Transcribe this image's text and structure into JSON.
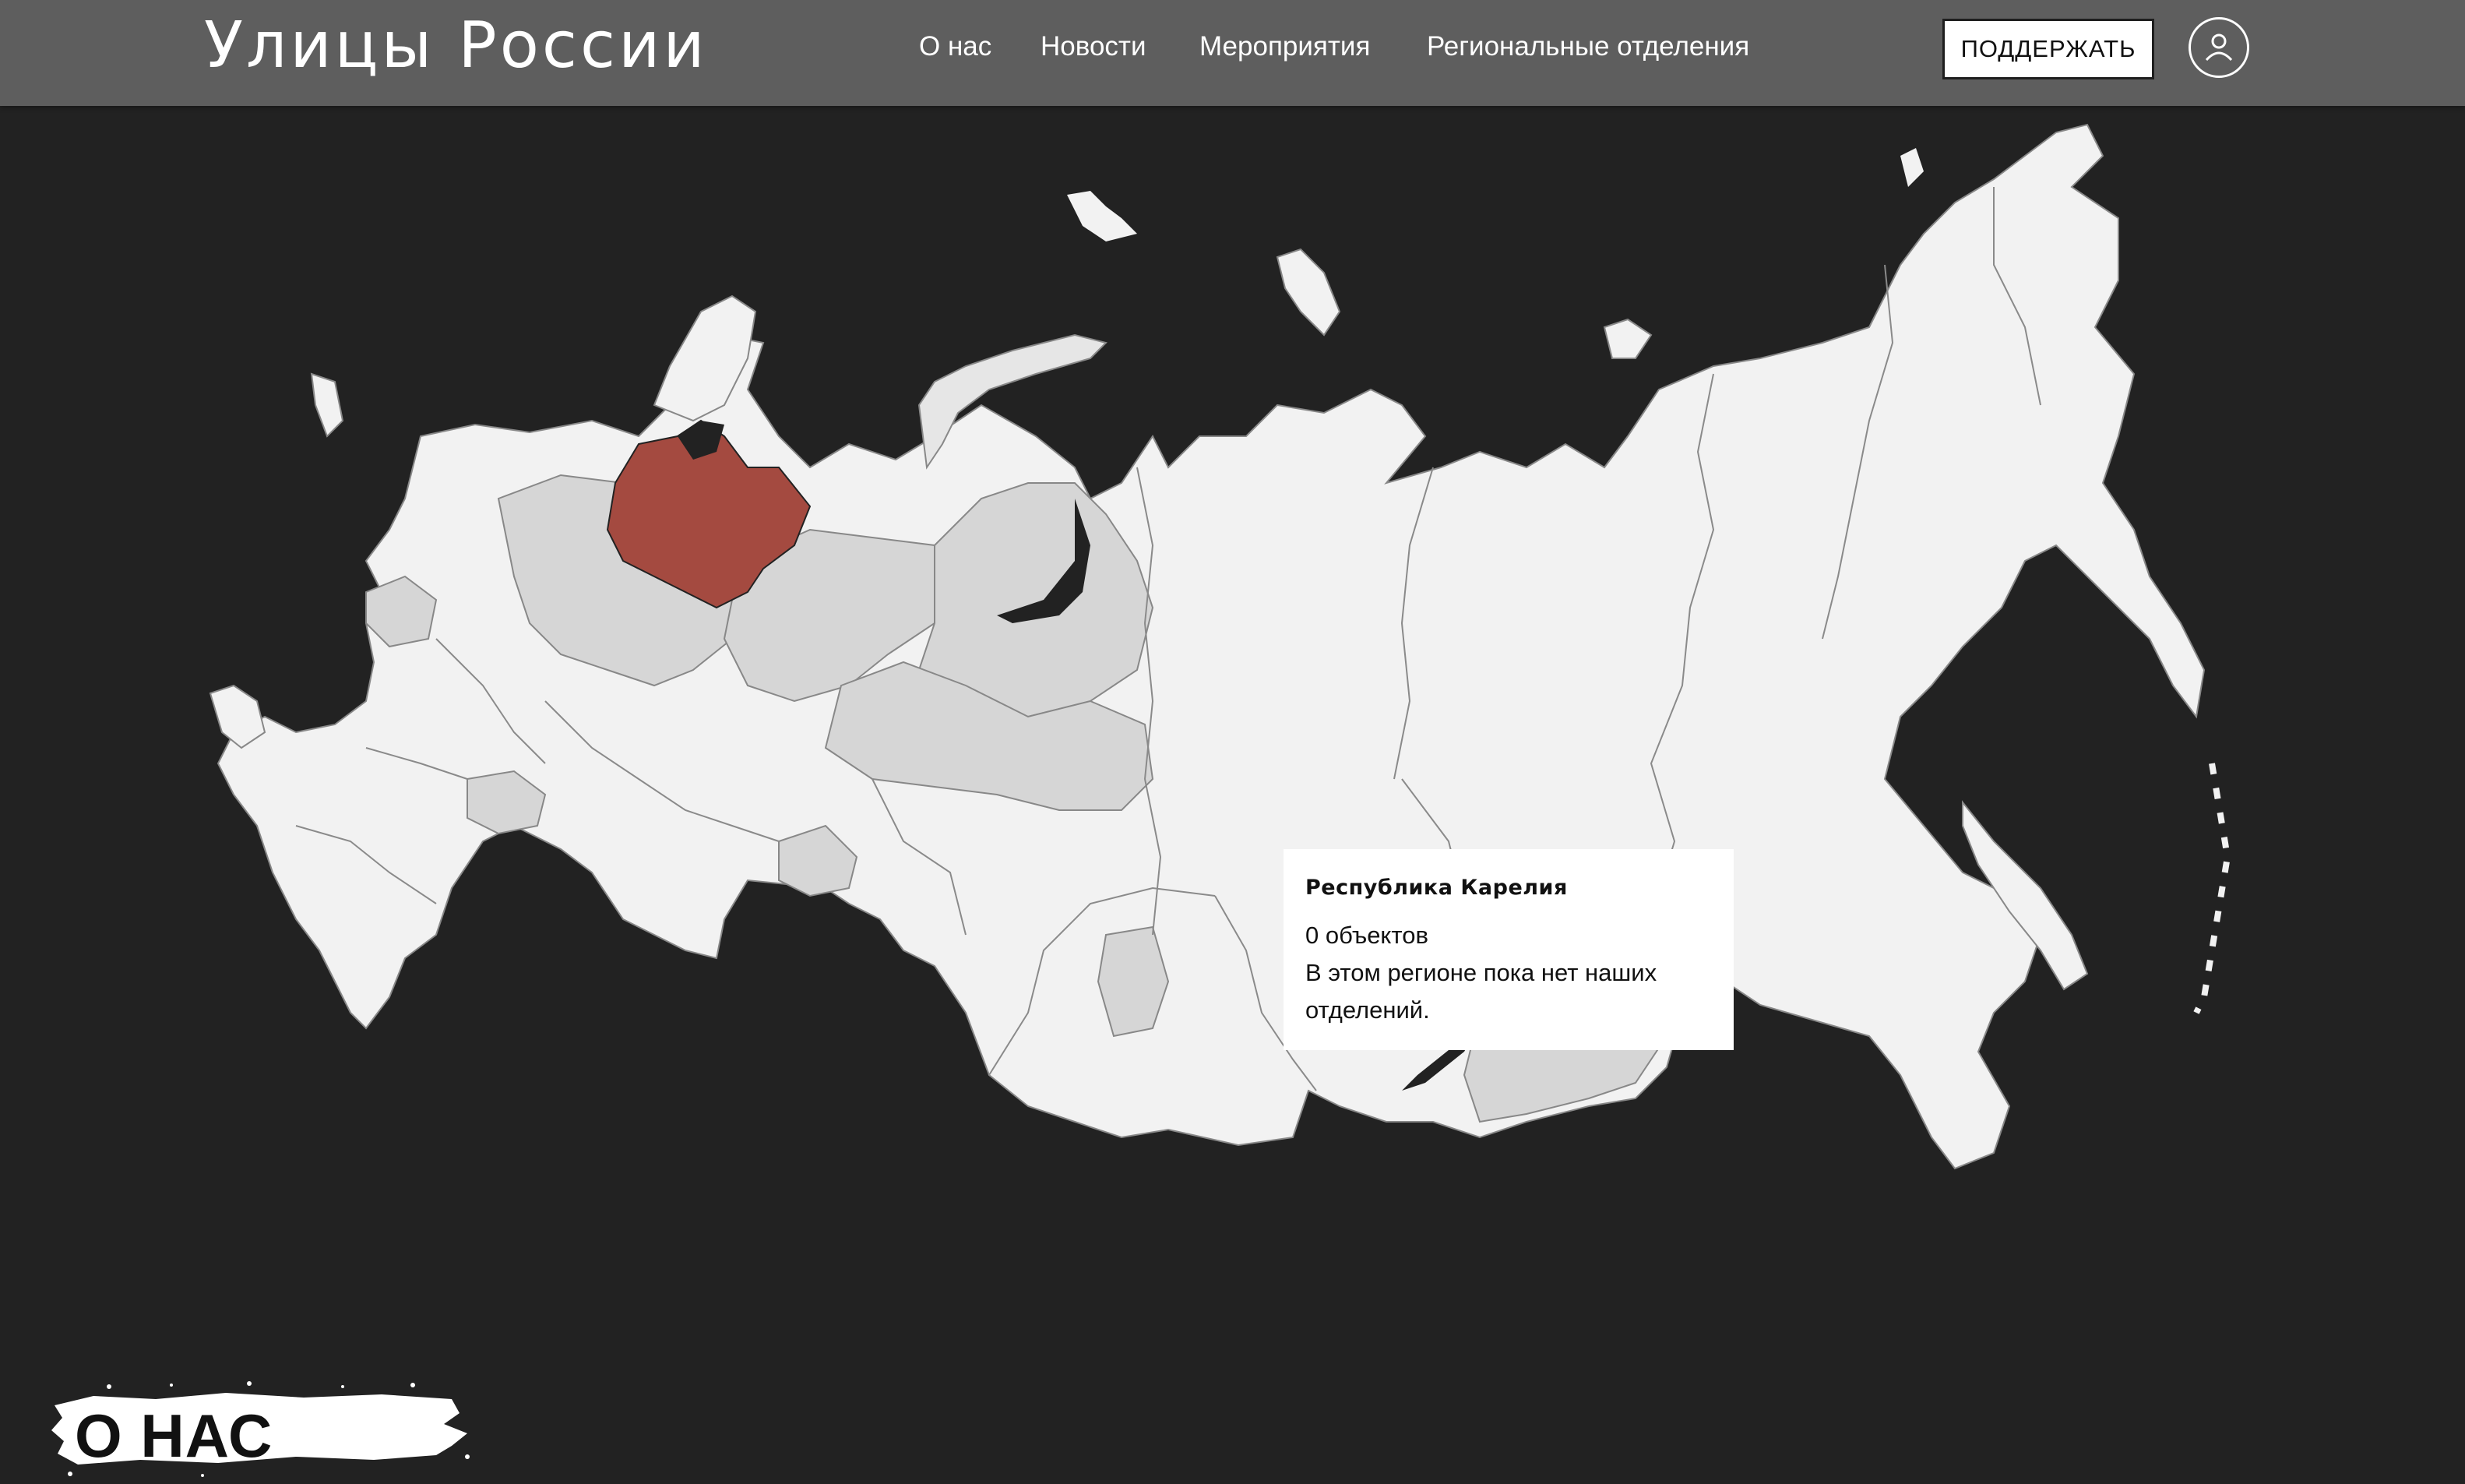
{
  "header": {
    "logo_text": "Улицы России",
    "nav": [
      {
        "label": "О нас"
      },
      {
        "label": "Новости"
      },
      {
        "label": "Мероприятия"
      },
      {
        "label": "Региональные отделения"
      }
    ],
    "support_label": "ПОДДЕРЖАТЬ",
    "account_icon": "user-icon"
  },
  "map": {
    "highlight_color": "#a44a40",
    "region_light_color": "#f2f2f2",
    "region_mid_color": "#d6d6d6",
    "tooltip": {
      "title": "Республика Карелия",
      "count": "0 объектов",
      "message_line1": "В этом регионе пока нет наших",
      "message_line2": "отделений."
    }
  },
  "about": {
    "title": "О НАС"
  }
}
